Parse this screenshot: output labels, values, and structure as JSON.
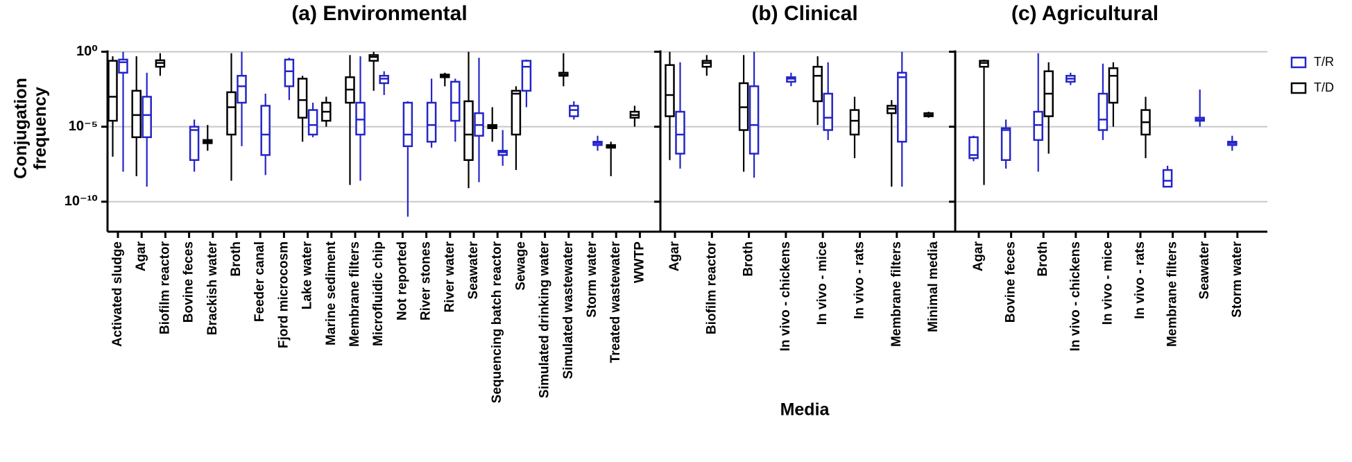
{
  "chart_data": [
    {
      "type": "box",
      "title": "(a) Environmental",
      "y_label": "Conjugation frequency",
      "log_y": true,
      "grid": true,
      "ylim": [
        1e-12,
        1
      ],
      "yticks": [
        {
          "value": 1,
          "label": "10⁰"
        },
        {
          "value": 1e-05,
          "label": "10⁻⁵"
        },
        {
          "value": 1e-10,
          "label": "10⁻¹⁰"
        }
      ],
      "categories": [
        "Activated sludge",
        "Agar",
        "Biofilm reactor",
        "Bovine feces",
        "Brackish water",
        "Broth",
        "Feeder canal",
        "Fjord microcosm",
        "Lake water",
        "Marine sediment",
        "Membrane filters",
        "Microfluidic chip",
        "Not reported",
        "River stones",
        "River water",
        "Seawater",
        "Sequencing batch reactor",
        "Sewage",
        "Simulated drinking water",
        "Simulated wastewater",
        "Storm water",
        "Treated wastewater",
        "WWTP"
      ],
      "series": [
        {
          "name": "T/D",
          "color": "#000000",
          "values": [
            [
              1e-07,
              2.5e-05,
              0.001,
              0.25,
              0.5
            ],
            [
              5e-09,
              2e-06,
              6e-05,
              0.0025,
              0.5
            ],
            [
              0.025,
              0.1,
              0.18,
              0.27,
              0.8
            ],
            null,
            [
              2.5e-07,
              8e-07,
              1e-06,
              1.3e-06,
              1.3e-05
            ],
            [
              2.5e-09,
              3e-06,
              0.0002,
              0.002,
              0.8
            ],
            null,
            null,
            [
              1e-06,
              4e-05,
              0.0006,
              0.016,
              0.025
            ],
            [
              1e-05,
              2.5e-05,
              0.0001,
              0.0004,
              0.001
            ],
            [
              1.3e-09,
              0.0004,
              0.003,
              0.02,
              0.6
            ],
            [
              0.0025,
              0.25,
              0.45,
              0.6,
              1
            ],
            null,
            null,
            [
              0.005,
              0.02,
              0.025,
              0.03,
              0.04
            ],
            [
              8e-10,
              6e-08,
              3e-06,
              0.0005,
              1
            ],
            [
              1e-06,
              8e-06,
              1e-05,
              1.3e-05,
              0.0002
            ],
            [
              1.3e-08,
              3e-06,
              0.0016,
              0.0025,
              0.005
            ],
            null,
            [
              0.005,
              0.025,
              0.03,
              0.04,
              0.8
            ],
            null,
            [
              5e-09,
              4e-07,
              5e-07,
              6e-07,
              1e-06
            ],
            [
              1e-05,
              4e-05,
              6e-05,
              0.0001,
              0.00025
            ]
          ]
        },
        {
          "name": "T/R",
          "color": "#2424c8",
          "values": [
            [
              1e-08,
              0.04,
              0.2,
              0.3,
              1
            ],
            [
              1e-09,
              2e-06,
              6e-05,
              0.001,
              0.04
            ],
            null,
            [
              1e-08,
              6e-08,
              6e-06,
              1e-05,
              3e-05
            ],
            null,
            [
              5e-07,
              0.0004,
              0.005,
              0.025,
              1
            ],
            [
              6e-09,
              1.3e-07,
              3e-06,
              0.00025,
              0.0016
            ],
            [
              0.0006,
              0.005,
              0.05,
              0.3,
              0.4
            ],
            [
              2e-06,
              3e-06,
              1.3e-05,
              0.00013,
              0.0004
            ],
            null,
            [
              2.5e-09,
              3e-06,
              3e-05,
              0.0004,
              0.5
            ],
            [
              0.0013,
              0.008,
              0.016,
              0.025,
              0.05
            ],
            [
              1e-11,
              5e-07,
              3e-06,
              0.0004,
              0.0005
            ],
            [
              4e-07,
              1e-06,
              1.3e-05,
              0.0004,
              0.016
            ],
            [
              1e-06,
              2.5e-05,
              0.0004,
              0.01,
              0.016
            ],
            [
              2e-09,
              2.5e-06,
              1.3e-05,
              8e-05,
              0.4
            ],
            [
              2.5e-08,
              1.3e-07,
              2e-07,
              2.5e-07,
              6e-06
            ],
            [
              0.0002,
              0.0025,
              0.1,
              0.25,
              0.3
            ],
            null,
            [
              3e-05,
              5e-05,
              0.00013,
              0.00025,
              0.0005
            ],
            [
              2.5e-07,
              6e-07,
              8e-07,
              1e-06,
              2.5e-06
            ],
            null,
            null
          ]
        }
      ]
    },
    {
      "type": "box",
      "title": "(b) Clinical",
      "x_label": "Media",
      "categories": [
        "Agar",
        "Biofilm reactor",
        "Broth",
        "In vivo - chickens",
        "In vivo - mice",
        "In vivo - rats",
        "Membrane filters",
        "Minimal media"
      ],
      "series": [
        {
          "name": "T/D",
          "color": "#000000",
          "values": [
            [
              6e-08,
              5e-05,
              0.0013,
              0.13,
              1
            ],
            [
              0.025,
              0.1,
              0.18,
              0.25,
              0.6
            ],
            [
              1e-08,
              6e-06,
              0.0002,
              0.008,
              0.6
            ],
            null,
            [
              1.3e-05,
              0.0005,
              0.025,
              0.1,
              0.5
            ],
            [
              8e-08,
              3e-06,
              2.5e-05,
              0.00013,
              0.001
            ],
            [
              1e-09,
              8e-05,
              0.00016,
              0.00025,
              0.0006
            ],
            [
              4e-05,
              5e-05,
              6e-05,
              8e-05,
              0.0001
            ]
          ]
        },
        {
          "name": "T/R",
          "color": "#2424c8",
          "values": [
            [
              1.6e-08,
              1.6e-07,
              3e-06,
              0.0001,
              0.2
            ],
            null,
            [
              4e-09,
              1.6e-07,
              1.3e-05,
              0.005,
              1
            ],
            [
              0.005,
              0.01,
              0.016,
              0.02,
              0.04
            ],
            [
              1.3e-06,
              6e-06,
              4e-05,
              0.0016,
              0.2
            ],
            null,
            [
              1e-09,
              1e-06,
              0.02,
              0.04,
              1
            ],
            null
          ]
        }
      ]
    },
    {
      "type": "box",
      "title": "(c) Agricultural",
      "legend": "right",
      "categories": [
        "Agar",
        "Bovine feces",
        "Broth",
        "In vivo - chickens",
        "In vivo - mice",
        "In vivo - rats",
        "Membrane filters",
        "Seawater",
        "Storm water"
      ],
      "series": [
        {
          "name": "T/R",
          "color": "#2424c8",
          "values": [
            [
              5e-08,
              8e-08,
              1.3e-07,
              2e-06,
              2.5e-06
            ],
            [
              1.6e-08,
              6e-08,
              6e-06,
              8e-06,
              3e-05
            ],
            [
              1e-08,
              1.3e-06,
              1.3e-05,
              0.0001,
              0.8
            ],
            [
              0.006,
              0.01,
              0.016,
              0.025,
              0.04
            ],
            [
              1.3e-06,
              6e-06,
              3e-05,
              0.0016,
              0.16
            ],
            null,
            [
              1e-09,
              1e-09,
              2.5e-09,
              1.3e-08,
              2.5e-08
            ],
            [
              1e-05,
              2.5e-05,
              3e-05,
              4e-05,
              0.003
            ],
            [
              2.5e-07,
              6e-07,
              8e-07,
              1e-06,
              2.5e-06
            ]
          ]
        },
        {
          "name": "T/D",
          "color": "#000000",
          "values": [
            [
              1.3e-09,
              0.1,
              0.18,
              0.25,
              0.3
            ],
            null,
            [
              1.6e-07,
              5e-05,
              0.0016,
              0.05,
              0.2
            ],
            null,
            [
              1e-05,
              0.0004,
              0.025,
              0.08,
              0.2
            ],
            [
              8e-08,
              3e-06,
              2e-05,
              0.00013,
              0.001
            ],
            null,
            null,
            null
          ]
        }
      ]
    }
  ]
}
